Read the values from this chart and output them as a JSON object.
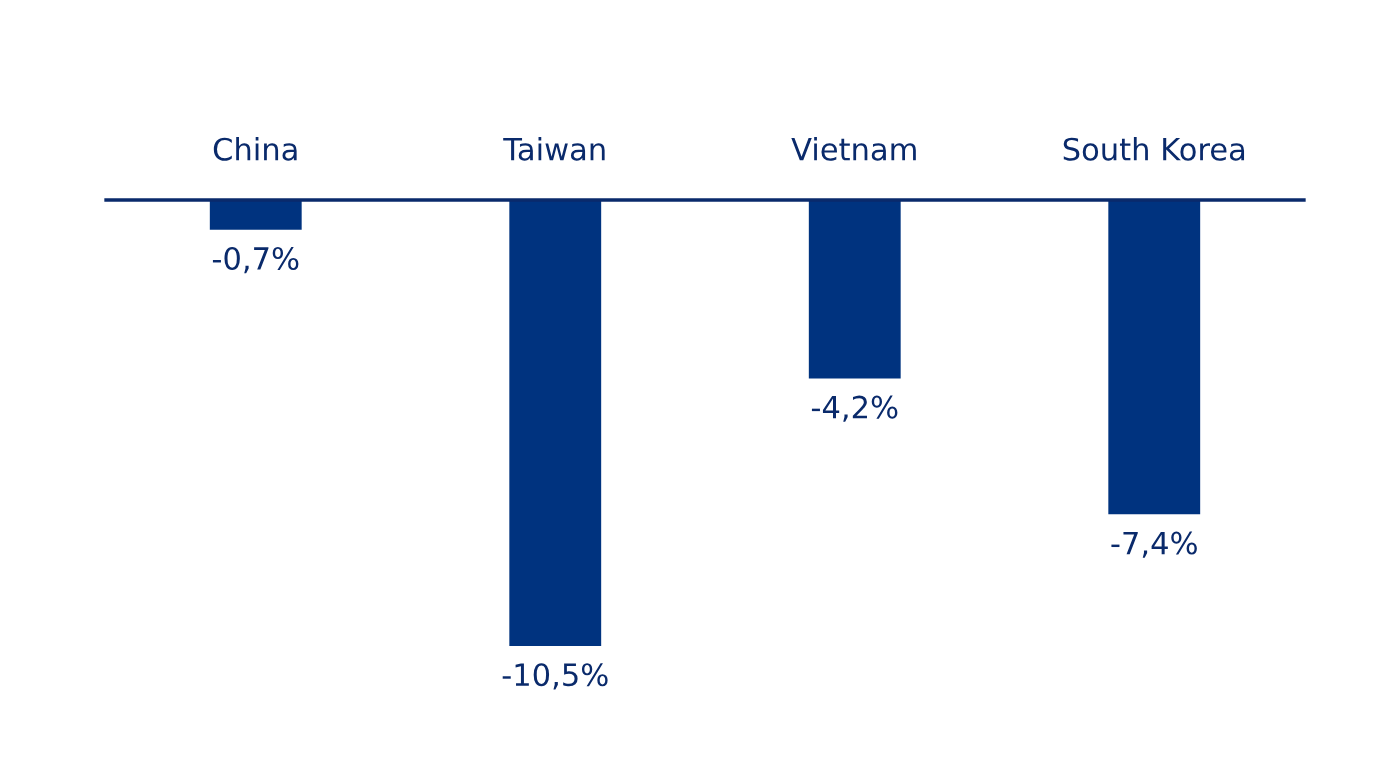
{
  "chart_data": {
    "type": "bar",
    "categories": [
      "China",
      "Taiwan",
      "Vietnam",
      "South Korea"
    ],
    "values": [
      -0.7,
      -10.5,
      -4.2,
      -7.4
    ],
    "value_labels": [
      "-0,7%",
      "-10,5%",
      "-4,2%",
      "-7,4%"
    ],
    "color": "#00337f",
    "grid": false,
    "legend": false
  }
}
